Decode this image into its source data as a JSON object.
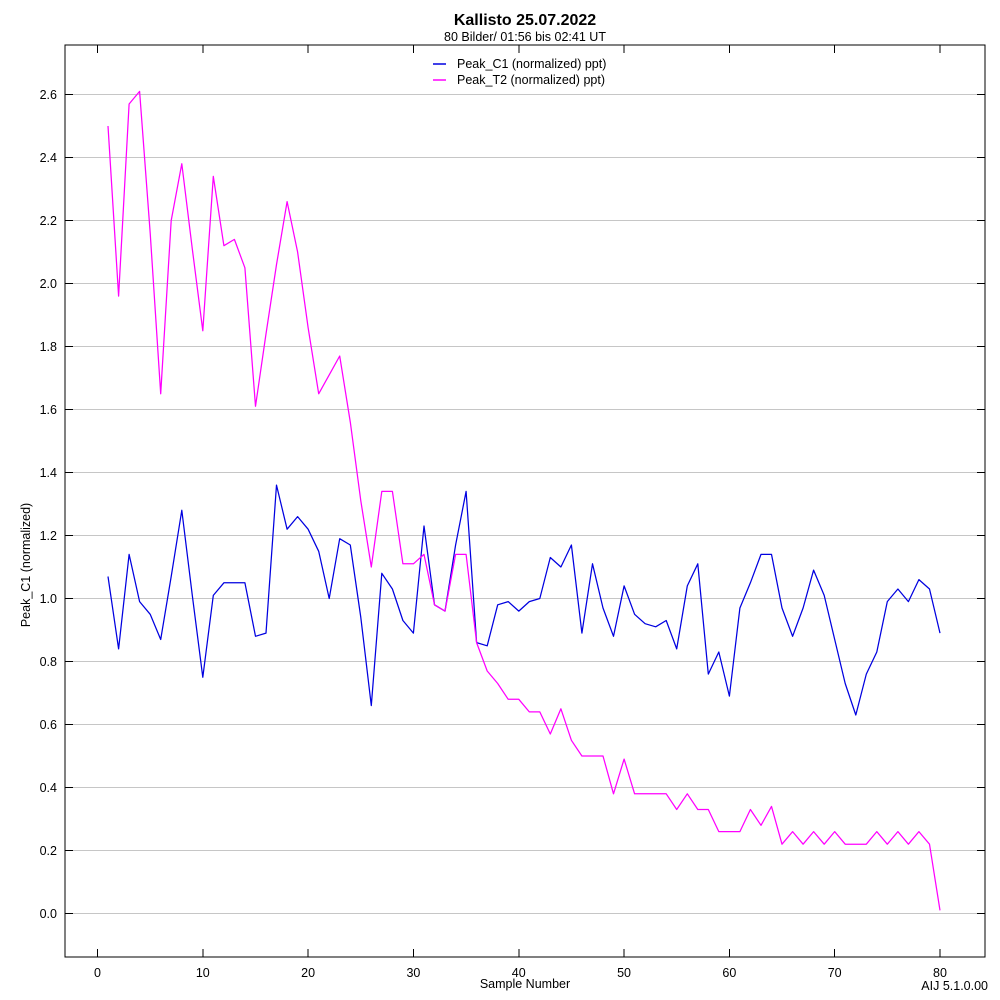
{
  "header": {
    "title": "Kallisto 25.07.2022",
    "subtitle": "80 Bilder/ 01:56 bis 02:41 UT"
  },
  "footer": {
    "xlabel": "Sample Number",
    "version": "AIJ 5.1.0.00"
  },
  "colors": {
    "series_c1": "#0000e0",
    "series_t2": "#ff00ff",
    "grid": "#c6c6c6",
    "frame": "#000000",
    "background": "#ffffff"
  },
  "chart_data": {
    "type": "line",
    "title": "Kallisto 25.07.2022",
    "subtitle": "80 Bilder/ 01:56 bis 02:41 UT",
    "xlabel": "Sample Number",
    "ylabel": "Peak_C1 (normalized)",
    "xlim": [
      -3,
      84.3
    ],
    "ylim": [
      -0.14,
      2.76
    ],
    "xticks": [
      0,
      10,
      20,
      30,
      40,
      50,
      60,
      70,
      80
    ],
    "yticks": [
      0.0,
      0.2,
      0.4,
      0.6,
      0.8,
      1.0,
      1.2,
      1.4,
      1.6,
      1.8,
      2.0,
      2.2,
      2.4,
      2.6
    ],
    "grid": "horizontal",
    "legend_position": "top-center",
    "x": [
      1,
      2,
      3,
      4,
      5,
      6,
      7,
      8,
      9,
      10,
      11,
      12,
      13,
      14,
      15,
      16,
      17,
      18,
      19,
      20,
      21,
      22,
      23,
      24,
      25,
      26,
      27,
      28,
      29,
      30,
      31,
      32,
      33,
      34,
      35,
      36,
      37,
      38,
      39,
      40,
      41,
      42,
      43,
      44,
      45,
      46,
      47,
      48,
      49,
      50,
      51,
      52,
      53,
      54,
      55,
      56,
      57,
      58,
      59,
      60,
      61,
      62,
      63,
      64,
      65,
      66,
      67,
      68,
      69,
      70,
      71,
      72,
      73,
      74,
      75,
      76,
      77,
      78,
      79,
      80
    ],
    "series": [
      {
        "name": "Peak_C1 (normalized) ppt)",
        "color": "#0000e0",
        "values": [
          1.07,
          0.84,
          1.14,
          0.99,
          0.95,
          0.87,
          1.07,
          1.28,
          1.01,
          0.75,
          1.01,
          1.05,
          1.05,
          1.05,
          0.88,
          0.89,
          1.36,
          1.22,
          1.26,
          1.22,
          1.15,
          1.0,
          1.19,
          1.17,
          0.94,
          0.66,
          1.08,
          1.03,
          0.93,
          0.89,
          1.23,
          0.98,
          0.96,
          1.17,
          1.34,
          0.86,
          0.85,
          0.98,
          0.99,
          0.96,
          0.99,
          1.0,
          1.13,
          1.1,
          1.17,
          0.89,
          1.11,
          0.97,
          0.88,
          1.04,
          0.95,
          0.92,
          0.91,
          0.93,
          0.84,
          1.04,
          1.11,
          0.76,
          0.83,
          0.69,
          0.97,
          1.05,
          1.14,
          1.14,
          0.97,
          0.88,
          0.97,
          1.09,
          1.01,
          0.87,
          0.73,
          0.63,
          0.76,
          0.83,
          0.99,
          1.03,
          0.99,
          1.06,
          1.03,
          0.89
        ]
      },
      {
        "name": "Peak_T2 (normalized) ppt)",
        "color": "#ff00ff",
        "values": [
          2.5,
          1.96,
          2.57,
          2.61,
          2.16,
          1.65,
          2.2,
          2.38,
          2.11,
          1.85,
          2.34,
          2.12,
          2.14,
          2.05,
          1.61,
          1.84,
          2.06,
          2.26,
          2.1,
          1.86,
          1.65,
          1.71,
          1.77,
          1.56,
          1.31,
          1.1,
          1.34,
          1.34,
          1.11,
          1.11,
          1.14,
          0.98,
          0.96,
          1.14,
          1.14,
          0.86,
          0.77,
          0.73,
          0.68,
          0.68,
          0.64,
          0.64,
          0.57,
          0.65,
          0.55,
          0.5,
          0.5,
          0.5,
          0.38,
          0.49,
          0.38,
          0.38,
          0.38,
          0.38,
          0.33,
          0.38,
          0.33,
          0.33,
          0.26,
          0.26,
          0.26,
          0.33,
          0.28,
          0.34,
          0.22,
          0.26,
          0.22,
          0.26,
          0.22,
          0.26,
          0.22,
          0.22,
          0.22,
          0.26,
          0.22,
          0.26,
          0.22,
          0.26,
          0.22,
          0.01
        ]
      }
    ]
  }
}
